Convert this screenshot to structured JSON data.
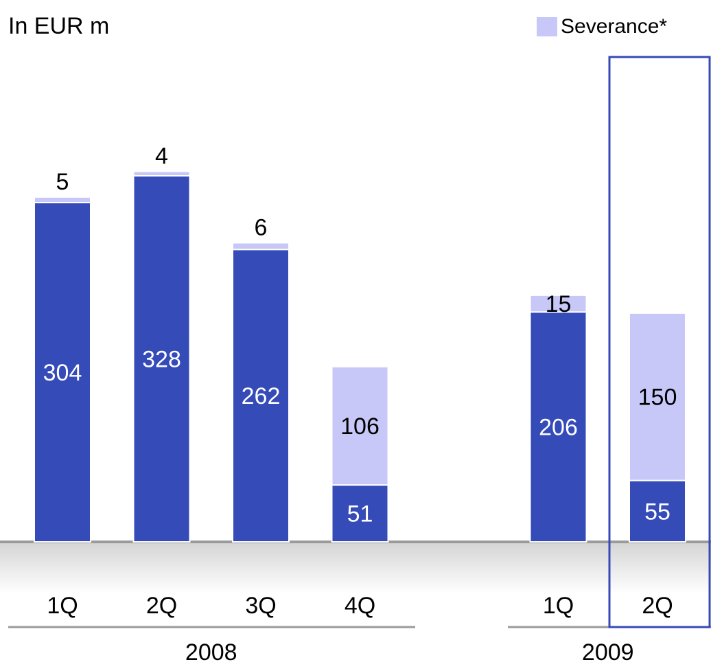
{
  "chart_data": {
    "type": "stacked_bar",
    "title": "In EUR m",
    "groups": [
      {
        "label": "2008",
        "categories": [
          "1Q",
          "2Q",
          "3Q",
          "4Q"
        ]
      },
      {
        "label": "2009",
        "categories": [
          "1Q",
          "2Q"
        ]
      }
    ],
    "series": [
      {
        "color": "#354bb8",
        "values": [
          304,
          328,
          262,
          51,
          206,
          55
        ]
      },
      {
        "name": "Severance*",
        "color": "#c8c8f8",
        "values": [
          5,
          4,
          6,
          106,
          15,
          150
        ]
      }
    ],
    "ylim": [
      0,
      420
    ],
    "legend": "top-right"
  }
}
